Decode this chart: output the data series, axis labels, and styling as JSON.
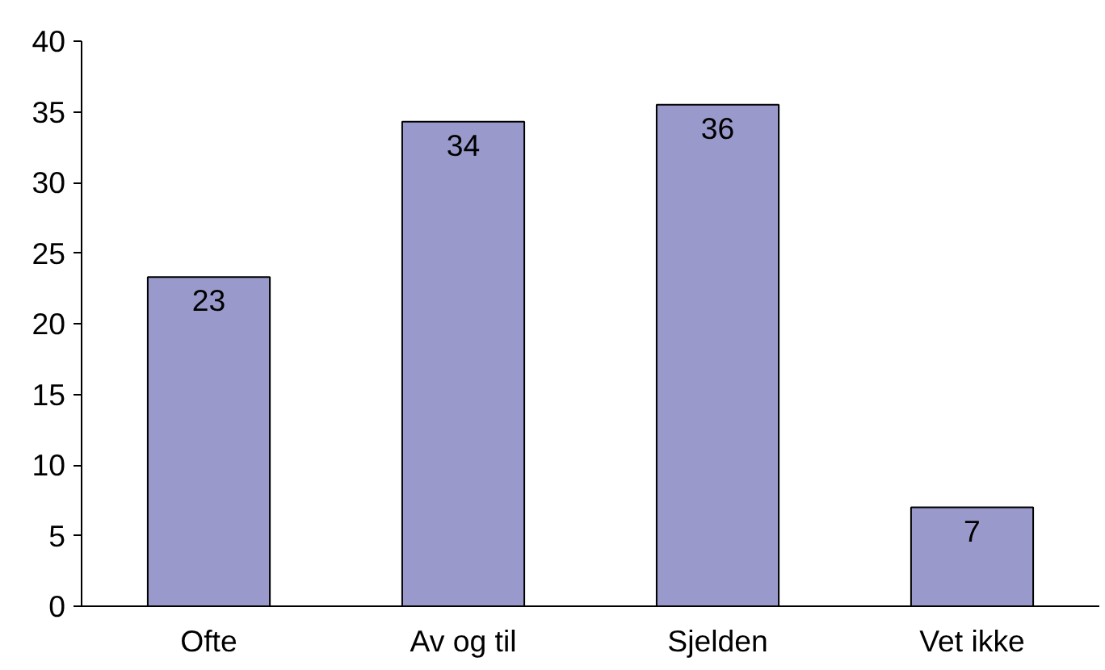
{
  "chart_data": {
    "type": "bar",
    "categories": [
      "Ofte",
      "Av og til",
      "Sjelden",
      "Vet ikke"
    ],
    "values": [
      23.3,
      34.3,
      35.5,
      7
    ],
    "value_labels": [
      "23",
      "34",
      "36",
      "7"
    ],
    "color": "#9999cc",
    "ylim": [
      0,
      40
    ],
    "yticks": [
      0,
      5,
      10,
      15,
      20,
      25,
      30,
      35,
      40
    ],
    "grid": false
  }
}
